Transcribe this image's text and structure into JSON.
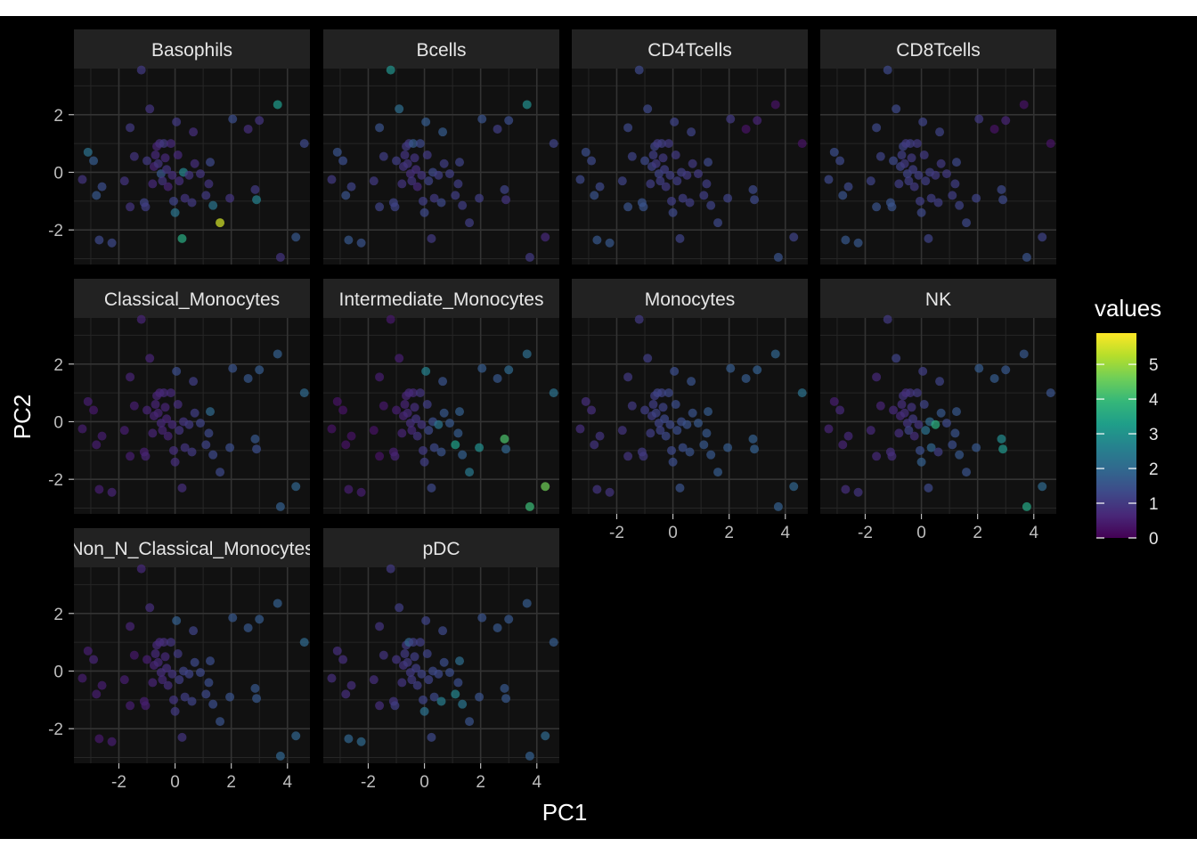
{
  "chart_data": {
    "type": "scatter",
    "layout": "facet_wrap",
    "xlabel": "PC1",
    "ylabel": "PC2",
    "xlim": [
      -3.6,
      4.8
    ],
    "ylim": [
      -3.2,
      3.6
    ],
    "x_ticks": [
      -2,
      0,
      2,
      4
    ],
    "y_ticks": [
      -2,
      0,
      2
    ],
    "x_tick_labels": [
      "-2",
      "0",
      "2",
      "4"
    ],
    "y_tick_labels": [
      "-2",
      "0",
      "2"
    ],
    "grid": true,
    "legend": {
      "title": "values",
      "position": "right",
      "min": 0,
      "max": 5.9,
      "ticks": [
        0,
        1,
        2,
        3,
        4,
        5
      ],
      "tick_labels": [
        "0",
        "1",
        "2",
        "3",
        "4",
        "5"
      ],
      "colormap": [
        "#440154",
        "#482878",
        "#3e4a89",
        "#31688e",
        "#26828e",
        "#1f9e89",
        "#35b779",
        "#6ece58",
        "#b5de2b",
        "#fde725"
      ]
    },
    "points": [
      {
        "x": -3.3,
        "y": -0.25
      },
      {
        "x": -3.1,
        "y": 0.7
      },
      {
        "x": -2.9,
        "y": 0.4
      },
      {
        "x": -2.8,
        "y": -0.8
      },
      {
        "x": -2.7,
        "y": -2.35
      },
      {
        "x": -2.6,
        "y": -0.5
      },
      {
        "x": -2.25,
        "y": -2.45
      },
      {
        "x": -1.8,
        "y": -0.3
      },
      {
        "x": -1.6,
        "y": 1.55
      },
      {
        "x": -1.6,
        "y": -1.2
      },
      {
        "x": -1.45,
        "y": 0.55
      },
      {
        "x": -1.2,
        "y": 3.55
      },
      {
        "x": -1.1,
        "y": -1.05
      },
      {
        "x": -1.05,
        "y": -1.2
      },
      {
        "x": -1.0,
        "y": 0.4
      },
      {
        "x": -0.9,
        "y": 2.2
      },
      {
        "x": -0.8,
        "y": -0.4
      },
      {
        "x": -0.75,
        "y": 0.2
      },
      {
        "x": -0.7,
        "y": 0.6
      },
      {
        "x": -0.65,
        "y": 0.9
      },
      {
        "x": -0.6,
        "y": 0.3
      },
      {
        "x": -0.55,
        "y": 1.0
      },
      {
        "x": -0.5,
        "y": -0.05
      },
      {
        "x": -0.45,
        "y": -0.3
      },
      {
        "x": -0.4,
        "y": 1.0
      },
      {
        "x": -0.35,
        "y": 0.5
      },
      {
        "x": -0.3,
        "y": 0.1
      },
      {
        "x": -0.25,
        "y": -0.5
      },
      {
        "x": -0.15,
        "y": 1.0
      },
      {
        "x": -0.1,
        "y": -0.1
      },
      {
        "x": -0.05,
        "y": -1.0
      },
      {
        "x": 0.0,
        "y": -1.4
      },
      {
        "x": 0.05,
        "y": 1.75
      },
      {
        "x": 0.1,
        "y": 0.6
      },
      {
        "x": 0.15,
        "y": -0.3
      },
      {
        "x": 0.25,
        "y": -2.3
      },
      {
        "x": 0.3,
        "y": 0.0
      },
      {
        "x": 0.35,
        "y": -0.9
      },
      {
        "x": 0.5,
        "y": -0.1
      },
      {
        "x": 0.6,
        "y": -1.05
      },
      {
        "x": 0.65,
        "y": 1.4
      },
      {
        "x": 0.7,
        "y": 0.3
      },
      {
        "x": 0.9,
        "y": -0.05
      },
      {
        "x": 1.1,
        "y": -0.8
      },
      {
        "x": 1.2,
        "y": -0.4
      },
      {
        "x": 1.25,
        "y": 0.35
      },
      {
        "x": 1.35,
        "y": -1.15
      },
      {
        "x": 1.6,
        "y": -1.75
      },
      {
        "x": 1.95,
        "y": -0.9
      },
      {
        "x": 2.05,
        "y": 1.85
      },
      {
        "x": 2.6,
        "y": 1.5
      },
      {
        "x": 2.85,
        "y": -0.6
      },
      {
        "x": 2.9,
        "y": -0.95
      },
      {
        "x": 3.0,
        "y": 1.8
      },
      {
        "x": 3.65,
        "y": 2.35
      },
      {
        "x": 3.75,
        "y": -2.95
      },
      {
        "x": 4.3,
        "y": -2.25
      },
      {
        "x": 4.6,
        "y": 1.0
      }
    ],
    "facets": [
      {
        "name": "Basophils",
        "values": [
          0.9,
          2.2,
          1.7,
          1.6,
          1.3,
          1.4,
          1.3,
          0.9,
          1.0,
          0.9,
          0.9,
          1.0,
          1.2,
          1.1,
          1.0,
          0.9,
          0.7,
          0.6,
          0.7,
          0.6,
          0.9,
          0.8,
          1.6,
          0.9,
          1.0,
          0.7,
          0.9,
          0.6,
          0.7,
          0.8,
          1.2,
          2.3,
          1.0,
          0.7,
          0.8,
          3.6,
          2.7,
          0.9,
          0.9,
          1.0,
          0.8,
          0.8,
          0.9,
          1.0,
          0.9,
          1.3,
          2.3,
          5.5,
          0.9,
          1.4,
          0.8,
          1.0,
          2.6,
          0.9,
          3.2,
          0.9,
          1.6,
          1.3
        ]
      },
      {
        "name": "Bcells",
        "values": [
          1.0,
          1.5,
          1.4,
          1.5,
          1.6,
          1.2,
          1.5,
          1.0,
          1.5,
          1.2,
          1.1,
          3.0,
          1.2,
          1.2,
          1.1,
          2.1,
          0.9,
          0.9,
          0.9,
          1.0,
          0.9,
          1.0,
          0.8,
          0.9,
          1.7,
          0.9,
          0.8,
          0.7,
          1.3,
          0.9,
          1.1,
          1.3,
          1.7,
          1.0,
          1.2,
          1.0,
          1.3,
          1.0,
          1.1,
          1.3,
          1.7,
          1.1,
          1.1,
          1.1,
          1.1,
          1.2,
          1.1,
          1.1,
          1.1,
          1.5,
          1.1,
          1.2,
          0.9,
          1.4,
          2.9,
          1.0,
          0.7,
          1.2
        ]
      },
      {
        "name": "CD4Tcells",
        "values": [
          1.3,
          1.4,
          1.3,
          1.5,
          1.6,
          1.3,
          1.6,
          1.2,
          1.3,
          1.5,
          1.2,
          1.3,
          1.5,
          1.5,
          1.3,
          1.3,
          1.1,
          1.2,
          1.1,
          1.2,
          1.0,
          1.0,
          1.2,
          1.1,
          1.1,
          1.0,
          1.1,
          1.0,
          1.0,
          1.1,
          1.1,
          1.3,
          1.2,
          1.0,
          1.1,
          1.2,
          1.1,
          1.1,
          1.0,
          1.1,
          1.2,
          1.0,
          1.0,
          1.1,
          1.1,
          1.3,
          1.2,
          1.3,
          1.2,
          1.0,
          0.3,
          1.3,
          1.3,
          0.6,
          0.3,
          1.5,
          1.2,
          0.3
        ]
      },
      {
        "name": "CD8Tcells",
        "values": [
          1.3,
          1.4,
          1.3,
          1.5,
          1.6,
          1.3,
          1.6,
          1.2,
          1.3,
          1.5,
          1.2,
          1.3,
          1.5,
          1.5,
          1.3,
          1.3,
          1.1,
          1.2,
          1.1,
          1.2,
          1.0,
          1.0,
          1.2,
          1.1,
          1.1,
          1.0,
          1.1,
          1.0,
          1.0,
          1.1,
          1.1,
          1.3,
          1.2,
          1.0,
          1.1,
          1.2,
          1.1,
          1.1,
          1.0,
          1.1,
          1.2,
          1.0,
          1.0,
          1.1,
          1.1,
          1.3,
          1.2,
          1.3,
          1.2,
          1.0,
          0.3,
          1.3,
          1.3,
          0.6,
          0.3,
          1.5,
          1.2,
          0.3
        ]
      },
      {
        "name": "Classical_Monocytes",
        "values": [
          0.5,
          0.5,
          0.4,
          0.5,
          0.5,
          0.5,
          0.6,
          0.5,
          0.6,
          0.5,
          0.5,
          0.6,
          0.5,
          0.6,
          0.6,
          0.6,
          0.6,
          0.6,
          0.6,
          0.6,
          0.6,
          0.6,
          0.7,
          0.6,
          0.7,
          0.6,
          0.6,
          0.6,
          0.7,
          0.7,
          0.8,
          0.8,
          1.4,
          0.8,
          0.9,
          0.8,
          0.9,
          0.9,
          1.0,
          1.0,
          1.1,
          1.1,
          1.2,
          1.2,
          1.3,
          2.0,
          1.3,
          1.3,
          1.4,
          1.5,
          1.6,
          1.6,
          1.4,
          1.7,
          1.8,
          1.8,
          1.9,
          2.0
        ]
      },
      {
        "name": "Intermediate_Monocytes",
        "values": [
          0.3,
          0.3,
          0.3,
          0.3,
          0.5,
          0.3,
          0.5,
          0.3,
          0.5,
          0.3,
          0.4,
          0.4,
          0.5,
          0.6,
          0.5,
          0.5,
          0.6,
          0.6,
          0.6,
          0.6,
          0.7,
          0.7,
          0.8,
          0.7,
          0.7,
          0.8,
          0.9,
          0.9,
          0.9,
          0.9,
          1.0,
          1.1,
          2.6,
          1.1,
          1.3,
          1.3,
          1.4,
          1.3,
          2.3,
          1.5,
          1.5,
          1.6,
          1.6,
          3.3,
          1.7,
          1.8,
          1.8,
          2.4,
          2.9,
          1.7,
          1.6,
          4.2,
          1.9,
          2.0,
          2.1,
          4.0,
          4.6,
          2.2
        ]
      },
      {
        "name": "Monocytes",
        "values": [
          0.8,
          0.8,
          0.8,
          0.9,
          0.9,
          0.9,
          0.9,
          0.9,
          1.0,
          0.9,
          1.0,
          1.0,
          1.0,
          1.0,
          1.1,
          1.1,
          1.1,
          1.1,
          1.1,
          1.1,
          1.2,
          1.2,
          1.2,
          1.2,
          1.2,
          1.2,
          1.3,
          1.3,
          1.3,
          1.3,
          1.3,
          1.4,
          1.4,
          1.4,
          1.4,
          1.5,
          1.4,
          1.4,
          1.5,
          1.5,
          1.5,
          1.5,
          1.6,
          1.6,
          1.6,
          1.7,
          1.6,
          1.7,
          1.7,
          1.7,
          1.7,
          1.8,
          1.8,
          1.8,
          1.9,
          1.8,
          1.9,
          2.2
        ]
      },
      {
        "name": "NK",
        "values": [
          0.6,
          0.5,
          0.7,
          0.6,
          0.8,
          0.7,
          0.9,
          0.7,
          0.7,
          0.7,
          0.6,
          1.0,
          0.8,
          0.8,
          0.7,
          1.2,
          0.8,
          0.7,
          0.8,
          0.9,
          0.8,
          0.8,
          0.9,
          1.2,
          0.9,
          0.9,
          1.0,
          0.8,
          1.0,
          0.9,
          1.4,
          1.8,
          1.1,
          1.2,
          2.2,
          1.3,
          2.0,
          1.9,
          3.7,
          1.1,
          1.2,
          1.6,
          1.3,
          1.4,
          1.5,
          1.6,
          1.6,
          1.5,
          1.6,
          1.7,
          1.7,
          2.8,
          3.1,
          1.6,
          1.6,
          3.5,
          2.0,
          1.5
        ]
      },
      {
        "name": "Non_N_Classical_Monocytes",
        "values": [
          0.5,
          0.5,
          0.6,
          0.5,
          0.4,
          0.5,
          0.5,
          0.5,
          0.6,
          0.5,
          0.4,
          0.7,
          0.5,
          0.5,
          0.5,
          0.8,
          0.6,
          0.6,
          0.7,
          0.7,
          0.7,
          0.7,
          0.8,
          0.7,
          0.8,
          0.7,
          0.8,
          0.8,
          0.9,
          0.9,
          0.9,
          1.0,
          1.8,
          1.0,
          1.1,
          0.9,
          1.2,
          1.1,
          1.2,
          1.2,
          1.2,
          1.3,
          1.3,
          1.3,
          1.4,
          1.4,
          1.4,
          1.5,
          1.5,
          1.6,
          1.6,
          1.6,
          1.6,
          1.7,
          1.8,
          1.9,
          1.9,
          2.0
        ]
      },
      {
        "name": "pDC",
        "values": [
          0.8,
          0.8,
          0.8,
          0.8,
          1.9,
          0.8,
          2.0,
          0.8,
          0.9,
          0.8,
          0.9,
          1.0,
          0.9,
          1.1,
          0.9,
          1.1,
          0.9,
          0.9,
          1.0,
          1.0,
          1.0,
          1.9,
          1.0,
          1.0,
          1.1,
          1.1,
          1.1,
          1.1,
          1.1,
          1.2,
          1.2,
          2.2,
          1.2,
          1.2,
          1.2,
          1.3,
          1.3,
          1.3,
          1.3,
          2.5,
          1.3,
          1.4,
          1.4,
          2.7,
          1.4,
          2.1,
          2.3,
          1.5,
          1.5,
          1.5,
          1.6,
          1.6,
          1.6,
          1.6,
          1.7,
          1.8,
          2.0,
          1.7
        ]
      }
    ]
  }
}
